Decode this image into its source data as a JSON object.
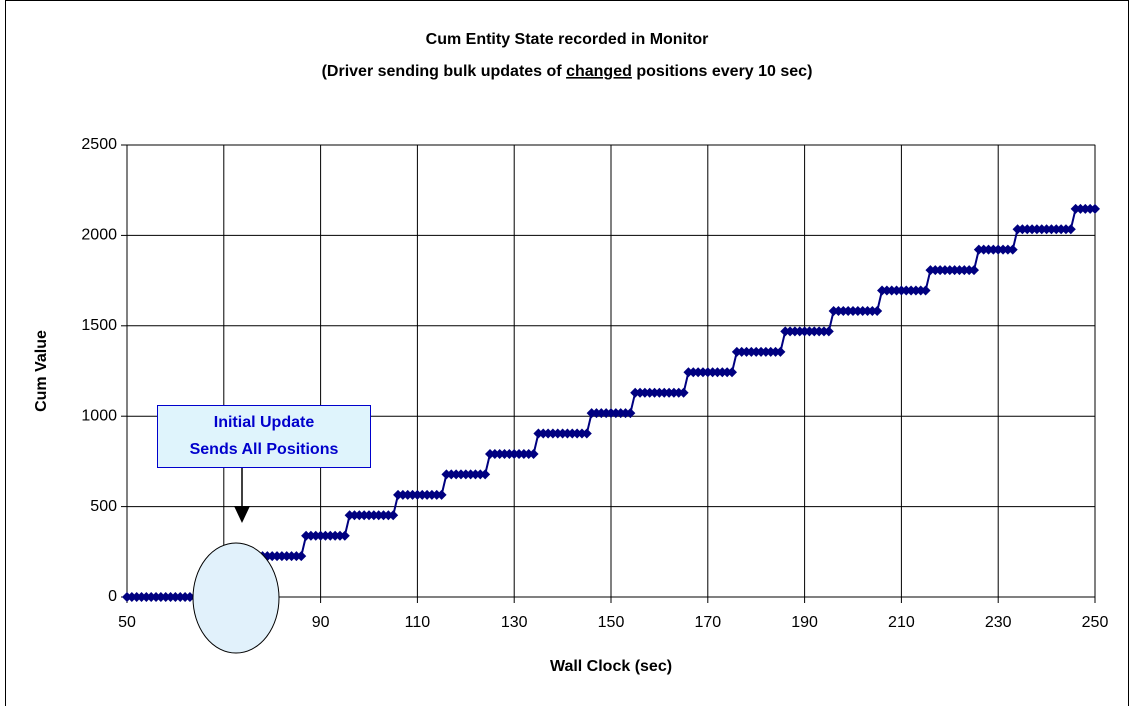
{
  "chart_data": {
    "type": "line",
    "title": "Cum Entity State recorded in Monitor",
    "subtitle": [
      "(Driver sending bulk updates of ",
      "changed",
      " positions every 10 sec)"
    ],
    "xlabel": "Wall Clock (sec)",
    "ylabel": "Cum Value",
    "annotation": [
      "Initial Update",
      "Sends All Positions"
    ],
    "xlim": [
      50,
      250
    ],
    "xticks": [
      50,
      70,
      90,
      110,
      130,
      150,
      170,
      190,
      210,
      230,
      250
    ],
    "ylim": [
      0,
      2500
    ],
    "yticks": [
      0,
      500,
      1000,
      1500,
      2000,
      2500
    ],
    "grid": true,
    "x": [
      50,
      51,
      52,
      53,
      54,
      55,
      56,
      57,
      58,
      59,
      60,
      61,
      62,
      63,
      64,
      65,
      66,
      67,
      68,
      69,
      70,
      71,
      72,
      73,
      74,
      75,
      76,
      77,
      78,
      79,
      80,
      81,
      82,
      83,
      84,
      85,
      86,
      87,
      88,
      89,
      90,
      91,
      92,
      93,
      94,
      95,
      96,
      97,
      98,
      99,
      100,
      101,
      102,
      103,
      104,
      105,
      106,
      107,
      108,
      109,
      110,
      111,
      112,
      113,
      114,
      115,
      116,
      117,
      118,
      119,
      120,
      121,
      122,
      123,
      124,
      125,
      126,
      127,
      128,
      129,
      130,
      131,
      132,
      133,
      134,
      135,
      136,
      137,
      138,
      139,
      140,
      141,
      142,
      143,
      144,
      145,
      146,
      147,
      148,
      149,
      150,
      151,
      152,
      153,
      154,
      155,
      156,
      157,
      158,
      159,
      160,
      161,
      162,
      163,
      164,
      165,
      166,
      167,
      168,
      169,
      170,
      171,
      172,
      173,
      174,
      175,
      176,
      177,
      178,
      179,
      180,
      181,
      182,
      183,
      184,
      185,
      186,
      187,
      188,
      189,
      190,
      191,
      192,
      193,
      194,
      195,
      196,
      197,
      198,
      199,
      200,
      201,
      202,
      203,
      204,
      205,
      206,
      207,
      208,
      209,
      210,
      211,
      212,
      213,
      214,
      215,
      216,
      217,
      218,
      219,
      220,
      221,
      222,
      223,
      224,
      225,
      226,
      227,
      228,
      229,
      230,
      231,
      232,
      233,
      234,
      235,
      236,
      237,
      238,
      239,
      240,
      241,
      242,
      243,
      244,
      245,
      246,
      247,
      248,
      249,
      250
    ],
    "series": [
      {
        "name": "Cum Value",
        "color": "#000080",
        "values": [
          0,
          0,
          0,
          0,
          0,
          0,
          0,
          0,
          0,
          0,
          0,
          0,
          0,
          0,
          0,
          0,
          113,
          113,
          113,
          113,
          113,
          113,
          113,
          113,
          113,
          113,
          226,
          226,
          226,
          226,
          226,
          226,
          226,
          226,
          226,
          226,
          226,
          339,
          339,
          339,
          339,
          339,
          339,
          339,
          339,
          339,
          452,
          452,
          452,
          452,
          452,
          452,
          452,
          452,
          452,
          452,
          565,
          565,
          565,
          565,
          565,
          565,
          565,
          565,
          565,
          565,
          678,
          678,
          678,
          678,
          678,
          678,
          678,
          678,
          678,
          791,
          791,
          791,
          791,
          791,
          791,
          791,
          791,
          791,
          791,
          904,
          904,
          904,
          904,
          904,
          904,
          904,
          904,
          904,
          904,
          904,
          1017,
          1017,
          1017,
          1017,
          1017,
          1017,
          1017,
          1017,
          1017,
          1130,
          1130,
          1130,
          1130,
          1130,
          1130,
          1130,
          1130,
          1130,
          1130,
          1130,
          1243,
          1243,
          1243,
          1243,
          1243,
          1243,
          1243,
          1243,
          1243,
          1243,
          1356,
          1356,
          1356,
          1356,
          1356,
          1356,
          1356,
          1356,
          1356,
          1356,
          1469,
          1469,
          1469,
          1469,
          1469,
          1469,
          1469,
          1469,
          1469,
          1469,
          1582,
          1582,
          1582,
          1582,
          1582,
          1582,
          1582,
          1582,
          1582,
          1582,
          1695,
          1695,
          1695,
          1695,
          1695,
          1695,
          1695,
          1695,
          1695,
          1695,
          1808,
          1808,
          1808,
          1808,
          1808,
          1808,
          1808,
          1808,
          1808,
          1808,
          1921,
          1921,
          1921,
          1921,
          1921,
          1921,
          1921,
          1921,
          2034,
          2034,
          2034,
          2034,
          2034,
          2034,
          2034,
          2034,
          2034,
          2034,
          2034,
          2034,
          2147,
          2147,
          2147,
          2147,
          2147
        ]
      }
    ]
  }
}
